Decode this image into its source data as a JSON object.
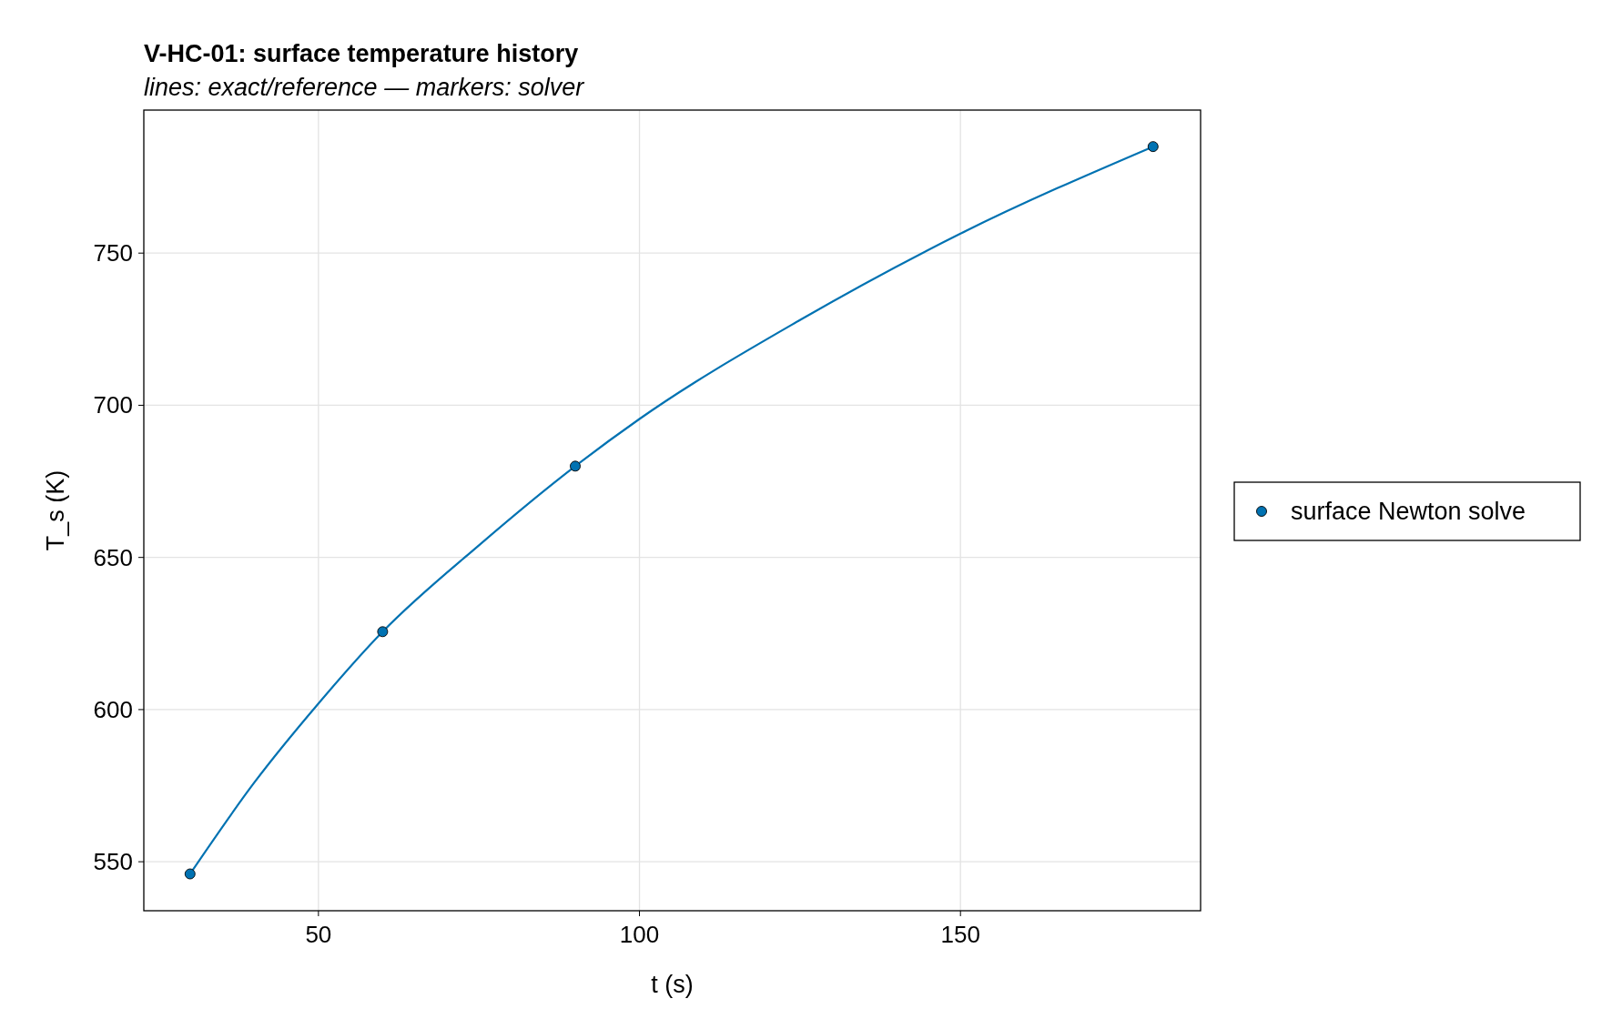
{
  "chart_data": {
    "type": "line",
    "title": "V-HC-01: surface temperature history",
    "subtitle": "lines: exact/reference — markers: solver",
    "xlabel": "t (s)",
    "ylabel": "T_s (K)",
    "xlim": [
      22.8,
      187.4
    ],
    "ylim": [
      533.9,
      797
    ],
    "xticks": [
      50,
      100,
      150
    ],
    "yticks": [
      550,
      600,
      650,
      700,
      750
    ],
    "grid": true,
    "legend": "right",
    "series": [
      {
        "color": "#0072b2",
        "line_style": "solid",
        "marker": "none",
        "x": [
          30,
          40,
          50,
          60,
          75,
          90,
          100,
          125,
          150,
          180
        ],
        "values": [
          546,
          576,
          602,
          625.6,
          654,
          680,
          695.5,
          728,
          756.4,
          785
        ]
      },
      {
        "type": "scatter",
        "name": "surface Newton solve",
        "color": "#0072b2",
        "marker": "circle",
        "x": [
          30,
          60,
          90,
          180
        ],
        "values": [
          546,
          625.6,
          680,
          785
        ]
      }
    ]
  }
}
